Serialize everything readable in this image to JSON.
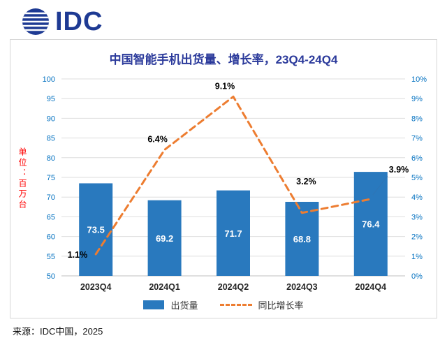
{
  "logo": {
    "text": "IDC"
  },
  "title": "中国智能手机出货量、增长率，23Q4-24Q4",
  "unit_label": "单位：百万台",
  "source": "来源：IDC中国，2025",
  "legend": {
    "bar_label": "出货量",
    "line_label": "同比增长率"
  },
  "colors": {
    "bar": "#2979BE",
    "line": "#ED7D31",
    "axis_text": "#0070C0",
    "title_text": "#2B3A9B",
    "unit_text": "#FF0000",
    "bar_value_label": "#FFFFFF",
    "growth_label": "#000000",
    "gridline": "#DEDEDE",
    "axis_line": "#BFBFBF",
    "logo_blue": "#1E3A93"
  },
  "chart_data": {
    "type": "bar",
    "title": "中国智能手机出货量、增长率，23Q4-24Q4",
    "categories": [
      "2023Q4",
      "2024Q1",
      "2024Q2",
      "2024Q3",
      "2024Q4"
    ],
    "series": [
      {
        "name": "出货量",
        "type": "bar",
        "axis": "left",
        "unit": "百万台",
        "values": [
          73.5,
          69.2,
          71.7,
          68.8,
          76.4
        ]
      },
      {
        "name": "同比增长率",
        "type": "line",
        "style": "dashed",
        "axis": "right",
        "unit": "%",
        "values": [
          1.1,
          6.4,
          9.1,
          3.2,
          3.9
        ]
      }
    ],
    "left_axis": {
      "label": "单位：百万台",
      "min": 50,
      "max": 100,
      "step": 5
    },
    "right_axis": {
      "min": 0,
      "max": 10,
      "step": 1,
      "suffix": "%"
    },
    "grid": true,
    "legend_position": "bottom"
  }
}
